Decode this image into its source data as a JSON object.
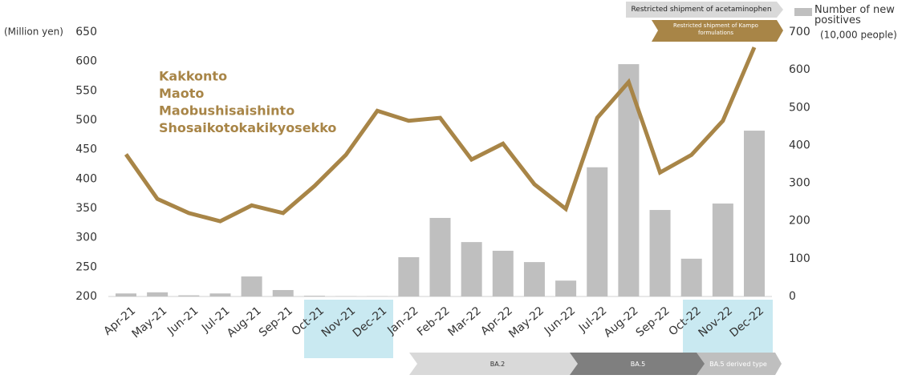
{
  "chart_data": {
    "type": "combo",
    "y_axis_label": "(Million yen)",
    "y2_axis_label": "(10,000 people)",
    "categories": [
      "Apr-21",
      "May-21",
      "Jun-21",
      "Jul-21",
      "Aug-21",
      "Sep-21",
      "Oct-21",
      "Nov-21",
      "Dec-21",
      "Jan-22",
      "Feb-22",
      "Mar-22",
      "Apr-22",
      "May-22",
      "Jun-22",
      "Jul-22",
      "Aug-22",
      "Sep-22",
      "Oct-22",
      "Nov-22",
      "Dec-22"
    ],
    "series": [
      {
        "type": "line",
        "name": [
          "Kakkonto",
          "Maoto",
          "Maobushisaishinto",
          "Shosaikotokakikyosekko"
        ],
        "color": "#a88547",
        "values": [
          442,
          366,
          342,
          328,
          355,
          342,
          388,
          441,
          516,
          499,
          504,
          433,
          460,
          391,
          349,
          504,
          565,
          411,
          441,
          499,
          624
        ]
      },
      {
        "type": "bar",
        "axis": "y2",
        "name": "Number of new positives",
        "color": "#bfbfbf",
        "values": [
          8,
          11,
          3,
          8,
          53,
          17,
          2,
          1,
          1,
          104,
          208,
          144,
          121,
          91,
          42,
          342,
          615,
          229,
          100,
          246,
          439
        ]
      }
    ],
    "ylim": [
      200,
      650
    ],
    "yticks": [
      200,
      250,
      300,
      350,
      400,
      450,
      500,
      550,
      600,
      650
    ],
    "y2lim": [
      0,
      700
    ],
    "y2ticks": [
      0,
      100,
      200,
      300,
      400,
      500,
      600,
      700
    ],
    "annotations": [
      "Restricted shipment of acetaminophen",
      "Restricted shipment of Kampo formulations",
      "BA.2",
      "BA.5",
      "BA.5 derived type"
    ]
  }
}
